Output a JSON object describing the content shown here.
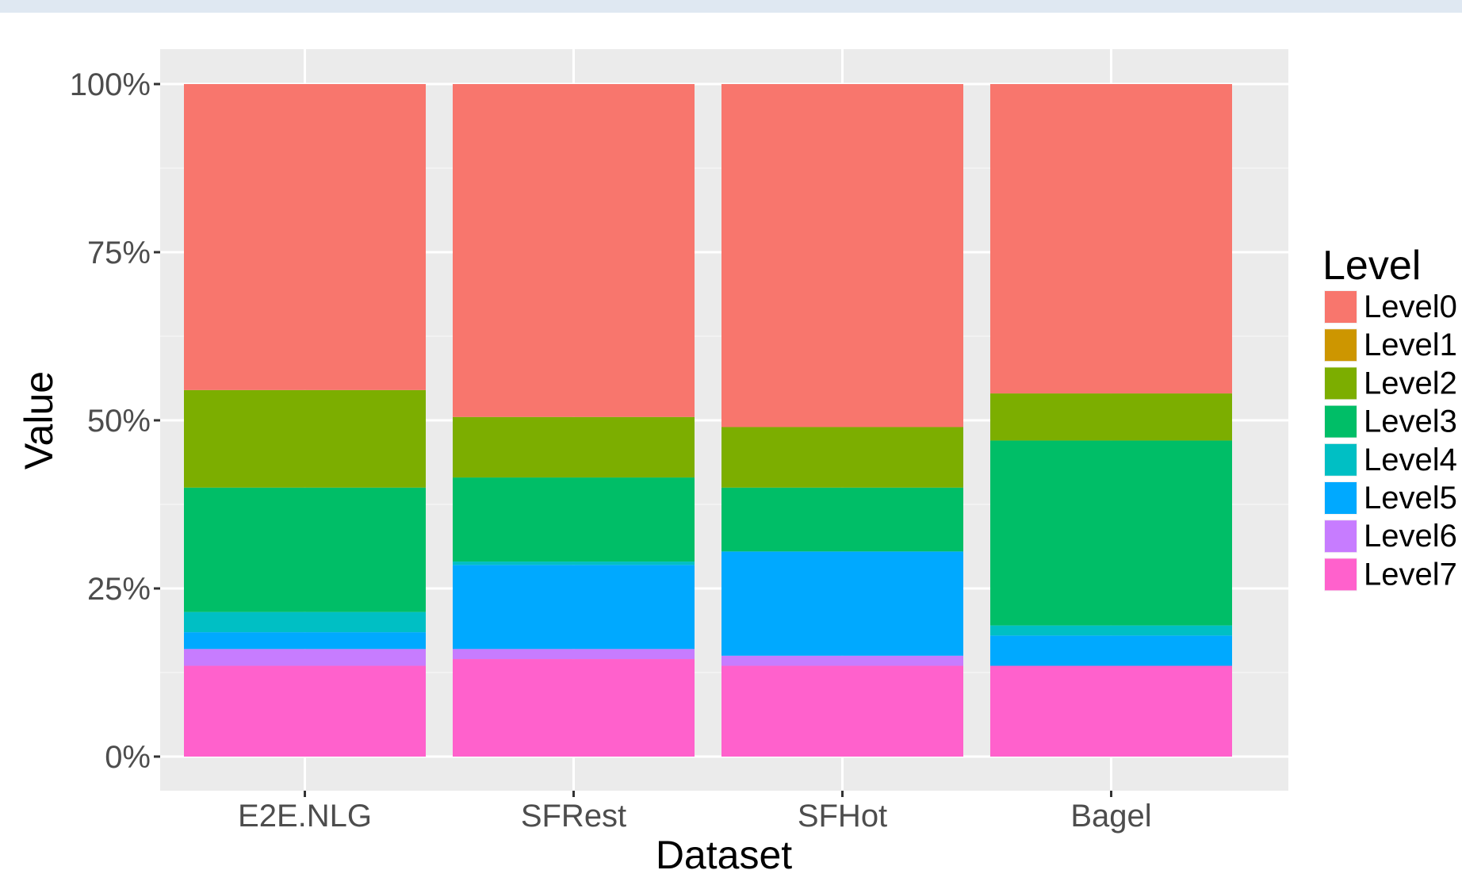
{
  "chart_data": {
    "type": "bar",
    "stacked": true,
    "categories": [
      "E2E.NLG",
      "SFRest",
      "SFHot",
      "Bagel"
    ],
    "xlabel": "Dataset",
    "ylabel": "Value",
    "ylim": [
      0,
      1
    ],
    "y_ticks": [
      0,
      0.25,
      0.5,
      0.75,
      1
    ],
    "y_tick_labels": [
      "0%",
      "25%",
      "50%",
      "75%",
      "100%"
    ],
    "grid": true,
    "legend": {
      "title": "Level",
      "placement": "right"
    },
    "series": [
      {
        "name": "Level7",
        "color": "#FF61CC",
        "values": [
          0.135,
          0.145,
          0.135,
          0.135
        ]
      },
      {
        "name": "Level6",
        "color": "#C77CFF",
        "values": [
          0.025,
          0.015,
          0.015,
          0.0
        ]
      },
      {
        "name": "Level5",
        "color": "#00A9FF",
        "values": [
          0.025,
          0.125,
          0.155,
          0.045
        ]
      },
      {
        "name": "Level4",
        "color": "#00BFC4",
        "values": [
          0.03,
          0.005,
          0.0,
          0.015
        ]
      },
      {
        "name": "Level3",
        "color": "#00BE67",
        "values": [
          0.185,
          0.125,
          0.095,
          0.275
        ]
      },
      {
        "name": "Level2",
        "color": "#7CAE00",
        "values": [
          0.145,
          0.09,
          0.09,
          0.07
        ]
      },
      {
        "name": "Level1",
        "color": "#CD9600",
        "values": [
          0.0,
          0.0,
          0.0,
          0.0
        ]
      },
      {
        "name": "Level0",
        "color": "#F8766D",
        "values": [
          0.455,
          0.495,
          0.51,
          0.46
        ]
      }
    ],
    "legend_order": [
      "Level0",
      "Level1",
      "Level2",
      "Level3",
      "Level4",
      "Level5",
      "Level6",
      "Level7"
    ]
  }
}
